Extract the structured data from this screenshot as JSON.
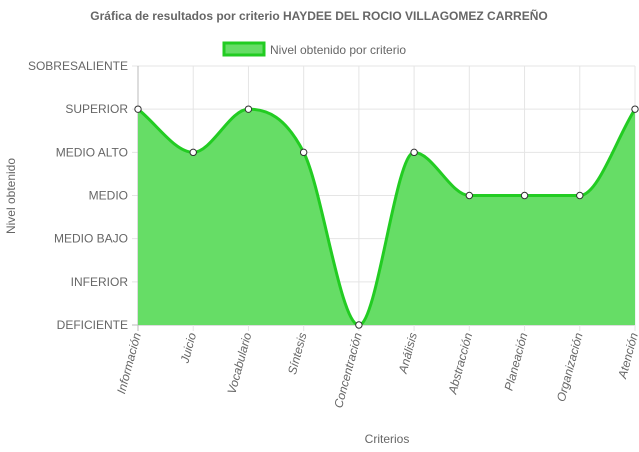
{
  "chart_data": {
    "type": "area",
    "title": "Gráfica de resultados por criterio HAYDEE DEL ROCIO VILLAGOMEZ CARREÑO",
    "xlabel": "Criterios",
    "ylabel": "Nivel obtenido",
    "levels": [
      "DEFICIENTE",
      "INFERIOR",
      "MEDIO BAJO",
      "MEDIO",
      "MEDIO ALTO",
      "SUPERIOR",
      "SOBRESALIENTE"
    ],
    "ylim": [
      0,
      6
    ],
    "categories": [
      "Información",
      "Juicio",
      "Vocabulario",
      "Síntesis",
      "Concentración",
      "Análisis",
      "Abstracción",
      "Planeación",
      "Organización",
      "Atención"
    ],
    "series": [
      {
        "name": "Nivel obtenido por criterio",
        "values": [
          5,
          4,
          5,
          4,
          0,
          4,
          3,
          3,
          3,
          5
        ],
        "fill_color": "#66dd66",
        "line_color": "#22cc22"
      }
    ],
    "grid": true,
    "legend_position": "top-center"
  }
}
